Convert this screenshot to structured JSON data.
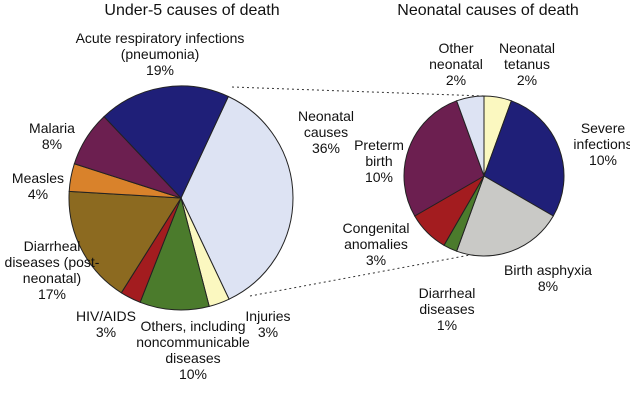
{
  "chart_data": [
    {
      "type": "pie",
      "title": "Under-5 causes of death",
      "categories": [
        "Neonatal causes",
        "Injuries",
        "Others, including noncommunicable diseases",
        "HIV/AIDS",
        "Diarrheal diseases (post-neonatal)",
        "Measles",
        "Malaria",
        "Acute respiratory infections (pneumonia)"
      ],
      "values": [
        36,
        3,
        10,
        3,
        17,
        4,
        8,
        19
      ],
      "value_labels": [
        "36%",
        "3%",
        "10%",
        "3%",
        "17%",
        "4%",
        "8%",
        "19%"
      ],
      "colors": [
        "#dde3f3",
        "#fbf8c0",
        "#4b7b2c",
        "#a31c1f",
        "#8c6a20",
        "#d9822b",
        "#6c1f50",
        "#1f1f78"
      ]
    },
    {
      "type": "pie",
      "title": "Neonatal causes of death",
      "categories": [
        "Neonatal tetanus",
        "Severe infections",
        "Birth asphyxia",
        "Diarrheal diseases",
        "Congenital anomalies",
        "Preterm birth",
        "Other neonatal"
      ],
      "values": [
        2,
        10,
        8,
        1,
        3,
        10,
        2
      ],
      "value_labels": [
        "2%",
        "10%",
        "8%",
        "1%",
        "3%",
        "10%",
        "2%"
      ],
      "colors": [
        "#fbf8c0",
        "#1f1f78",
        "#c9c9c6",
        "#4b7b2c",
        "#a31c1f",
        "#6c1f50",
        "#dde3f3"
      ]
    }
  ]
}
